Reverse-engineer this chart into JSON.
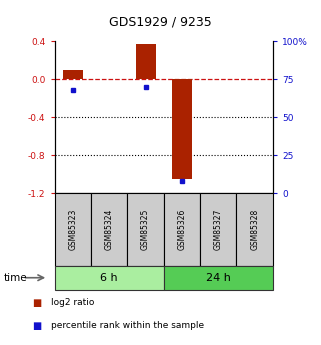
{
  "title": "GDS1929 / 9235",
  "samples": [
    "GSM85323",
    "GSM85324",
    "GSM85325",
    "GSM85326",
    "GSM85327",
    "GSM85328"
  ],
  "log2_ratio": [
    0.1,
    0.0,
    0.37,
    -1.05,
    0.0,
    0.0
  ],
  "percentile_rank": [
    68,
    0,
    70,
    8,
    0,
    0
  ],
  "ylim_left": [
    -1.2,
    0.4
  ],
  "ylim_right": [
    0,
    100
  ],
  "yticks_left": [
    -1.2,
    -0.8,
    -0.4,
    0.0,
    0.4
  ],
  "yticks_right": [
    0,
    25,
    50,
    75,
    100
  ],
  "group1_label": "6 h",
  "group2_label": "24 h",
  "group1_color": "#aaeea0",
  "group2_color": "#55cc55",
  "bar_color_red": "#aa2200",
  "bar_color_blue": "#1111cc",
  "dashed_line_color": "#cc1111",
  "dot_line_color": "#000000",
  "sample_box_color": "#cccccc",
  "bar_width": 0.55,
  "legend_red_label": "log2 ratio",
  "legend_blue_label": "percentile rank within the sample",
  "figsize": [
    3.21,
    3.45
  ],
  "dpi": 100
}
